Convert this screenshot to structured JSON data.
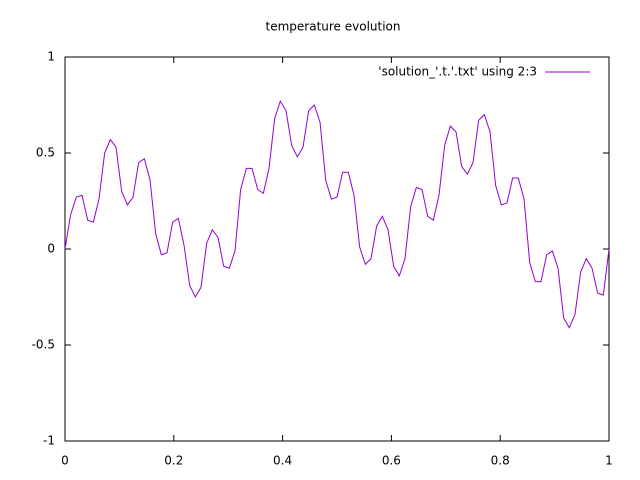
{
  "chart_data": {
    "type": "line",
    "title": "temperature evolution",
    "x": [
      0,
      0.0104,
      0.0208,
      0.0313,
      0.0417,
      0.0521,
      0.0625,
      0.0729,
      0.0833,
      0.0938,
      0.1042,
      0.1146,
      0.125,
      0.1354,
      0.1458,
      0.1563,
      0.1667,
      0.1771,
      0.1875,
      0.1979,
      0.2083,
      0.2188,
      0.2292,
      0.2396,
      0.25,
      0.2604,
      0.2708,
      0.2813,
      0.2917,
      0.3021,
      0.3125,
      0.3229,
      0.3333,
      0.3438,
      0.3542,
      0.3646,
      0.375,
      0.3854,
      0.3958,
      0.4063,
      0.4167,
      0.4271,
      0.4375,
      0.4479,
      0.4583,
      0.4688,
      0.4792,
      0.4896,
      0.5,
      0.5104,
      0.5208,
      0.5313,
      0.5417,
      0.5521,
      0.5625,
      0.5729,
      0.5833,
      0.5938,
      0.6042,
      0.6146,
      0.625,
      0.6354,
      0.6458,
      0.6563,
      0.6667,
      0.6771,
      0.6875,
      0.6979,
      0.7083,
      0.7188,
      0.7292,
      0.7396,
      0.75,
      0.7604,
      0.7708,
      0.7813,
      0.7917,
      0.8021,
      0.8125,
      0.8229,
      0.8333,
      0.8438,
      0.8542,
      0.8646,
      0.875,
      0.8854,
      0.8958,
      0.9063,
      0.9167,
      0.9271,
      0.9375,
      0.9479,
      0.9583,
      0.9688,
      0.9792,
      0.9896,
      1
    ],
    "series": [
      {
        "name": "'solution_'.t.'.txt' using 2:3",
        "color": "#9400d3",
        "values": [
          0,
          0.18,
          0.27,
          0.28,
          0.15,
          0.14,
          0.26,
          0.5,
          0.57,
          0.53,
          0.3,
          0.23,
          0.27,
          0.45,
          0.47,
          0.36,
          0.08,
          -0.03,
          -0.02,
          0.14,
          0.16,
          0.02,
          -0.19,
          -0.25,
          -0.2,
          0.03,
          0.1,
          0.06,
          -0.09,
          -0.1,
          -0.01,
          0.31,
          0.42,
          0.42,
          0.31,
          0.29,
          0.42,
          0.68,
          0.77,
          0.72,
          0.54,
          0.48,
          0.53,
          0.72,
          0.75,
          0.66,
          0.36,
          0.26,
          0.27,
          0.4,
          0.4,
          0.28,
          0.01,
          -0.08,
          -0.05,
          0.12,
          0.17,
          0.1,
          -0.09,
          -0.14,
          -0.05,
          0.22,
          0.32,
          0.31,
          0.17,
          0.15,
          0.28,
          0.54,
          0.64,
          0.61,
          0.43,
          0.39,
          0.45,
          0.67,
          0.7,
          0.61,
          0.33,
          0.23,
          0.24,
          0.37,
          0.37,
          0.26,
          -0.07,
          -0.17,
          -0.17,
          -0.03,
          -0.01,
          -0.1,
          -0.36,
          -0.41,
          -0.34,
          -0.12,
          -0.05,
          -0.1,
          -0.23,
          -0.24,
          0
        ]
      }
    ],
    "xlim": [
      0,
      1
    ],
    "xticks": [
      0,
      0.2,
      0.4,
      0.6,
      0.8,
      1
    ],
    "ylim": [
      -1,
      1
    ],
    "yticks": [
      -1,
      -0.5,
      0,
      0.5,
      1
    ],
    "grid": false,
    "legend": "top-right"
  }
}
